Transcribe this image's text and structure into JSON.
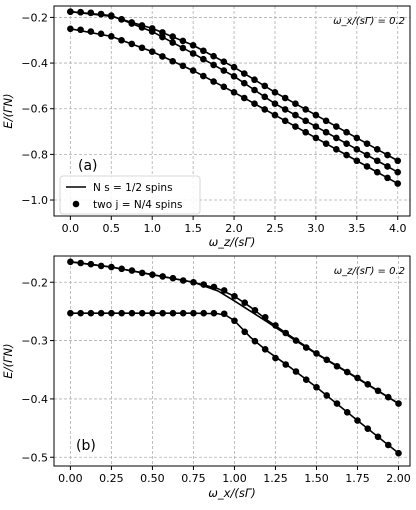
{
  "chart_data": [
    {
      "type": "line",
      "panel_label": "(a)",
      "annotation": "ω_x/(sΓ) = 0.2",
      "xlabel": "ω_z/(sΓ)",
      "ylabel": "E/(ΓN)",
      "xlim": [
        -0.2,
        4.15
      ],
      "ylim": [
        -1.07,
        -0.15
      ],
      "xticks": [
        0.0,
        0.5,
        1.0,
        1.5,
        2.0,
        2.5,
        3.0,
        3.5,
        4.0
      ],
      "xtick_labels": [
        "0.0",
        "0.5",
        "1.0",
        "1.5",
        "2.0",
        "2.5",
        "3.0",
        "3.5",
        "4.0"
      ],
      "yticks": [
        -1.0,
        -0.8,
        -0.6,
        -0.4,
        -0.2
      ],
      "ytick_labels": [
        "−1.0",
        "−0.8",
        "−0.6",
        "−0.4",
        "−0.2"
      ],
      "grid": true,
      "legend": {
        "placement": "lower-left",
        "entries": [
          {
            "marker": "line",
            "label": "N s = 1/2 spins"
          },
          {
            "marker": "dot",
            "label": "two j = N/4 spins"
          }
        ]
      },
      "series": [
        {
          "x": [
            0.0,
            0.5,
            1.0,
            1.5,
            2.0,
            2.5,
            3.0,
            3.5,
            4.0
          ],
          "values": [
            -0.175,
            -0.195,
            -0.248,
            -0.322,
            -0.418,
            -0.528,
            -0.628,
            -0.728,
            -0.828
          ]
        },
        {
          "x": [
            0.0,
            0.5,
            1.0,
            1.5,
            2.0,
            2.5,
            3.0,
            3.5,
            4.0
          ],
          "values": [
            -0.175,
            -0.192,
            -0.262,
            -0.358,
            -0.458,
            -0.578,
            -0.678,
            -0.778,
            -0.878
          ]
        },
        {
          "x": [
            0.0,
            0.5,
            1.0,
            1.5,
            2.0,
            2.5,
            3.0,
            3.5,
            4.0
          ],
          "values": [
            -0.25,
            -0.283,
            -0.35,
            -0.433,
            -0.528,
            -0.628,
            -0.728,
            -0.828,
            -0.928
          ]
        }
      ],
      "dots": [
        {
          "x": [
            0.0,
            0.125,
            0.25,
            0.375,
            0.5,
            0.625,
            0.75,
            0.875,
            1.0,
            1.125,
            1.25,
            1.375,
            1.5,
            1.625,
            1.75,
            1.875,
            2.0,
            2.125,
            2.25,
            2.375,
            2.5,
            2.625,
            2.75,
            2.875,
            3.0,
            3.125,
            3.25,
            3.375,
            3.5,
            3.625,
            3.75,
            3.875,
            4.0
          ],
          "values": [
            -0.175,
            -0.177,
            -0.18,
            -0.186,
            -0.195,
            -0.208,
            -0.222,
            -0.235,
            -0.248,
            -0.266,
            -0.284,
            -0.303,
            -0.322,
            -0.346,
            -0.37,
            -0.394,
            -0.418,
            -0.446,
            -0.473,
            -0.5,
            -0.528,
            -0.553,
            -0.578,
            -0.603,
            -0.628,
            -0.653,
            -0.678,
            -0.703,
            -0.728,
            -0.753,
            -0.778,
            -0.803,
            -0.828
          ]
        },
        {
          "x": [
            0.0,
            0.125,
            0.25,
            0.375,
            0.5,
            0.625,
            0.75,
            0.875,
            1.0,
            1.125,
            1.25,
            1.375,
            1.5,
            1.625,
            1.75,
            1.875,
            2.0,
            2.125,
            2.25,
            2.375,
            2.5,
            2.625,
            2.75,
            2.875,
            3.0,
            3.125,
            3.25,
            3.375,
            3.5,
            3.625,
            3.75,
            3.875,
            4.0
          ],
          "values": [
            -0.175,
            -0.177,
            -0.18,
            -0.185,
            -0.192,
            -0.209,
            -0.227,
            -0.244,
            -0.262,
            -0.286,
            -0.31,
            -0.334,
            -0.358,
            -0.383,
            -0.408,
            -0.433,
            -0.458,
            -0.488,
            -0.518,
            -0.548,
            -0.578,
            -0.603,
            -0.628,
            -0.653,
            -0.678,
            -0.703,
            -0.728,
            -0.753,
            -0.778,
            -0.803,
            -0.828,
            -0.853,
            -0.878
          ]
        },
        {
          "x": [
            0.0,
            0.125,
            0.25,
            0.375,
            0.5,
            0.625,
            0.75,
            0.875,
            1.0,
            1.125,
            1.25,
            1.375,
            1.5,
            1.625,
            1.75,
            1.875,
            2.0,
            2.125,
            2.25,
            2.375,
            2.5,
            2.625,
            2.75,
            2.875,
            3.0,
            3.125,
            3.25,
            3.375,
            3.5,
            3.625,
            3.75,
            3.875,
            4.0
          ],
          "values": [
            -0.25,
            -0.254,
            -0.262,
            -0.272,
            -0.283,
            -0.3,
            -0.316,
            -0.333,
            -0.35,
            -0.371,
            -0.392,
            -0.412,
            -0.433,
            -0.457,
            -0.481,
            -0.504,
            -0.528,
            -0.553,
            -0.578,
            -0.603,
            -0.628,
            -0.653,
            -0.678,
            -0.703,
            -0.728,
            -0.753,
            -0.778,
            -0.803,
            -0.828,
            -0.853,
            -0.878,
            -0.903,
            -0.928
          ]
        }
      ]
    },
    {
      "type": "line",
      "panel_label": "(b)",
      "annotation": "ω_z/(sΓ) = 0.2",
      "xlabel": "ω_x/(sΓ)",
      "ylabel": "E/(ΓN)",
      "xlim": [
        -0.1,
        2.07
      ],
      "ylim": [
        -0.515,
        -0.155
      ],
      "xticks": [
        0.0,
        0.25,
        0.5,
        0.75,
        1.0,
        1.25,
        1.5,
        1.75,
        2.0
      ],
      "xtick_labels": [
        "0.00",
        "0.25",
        "0.50",
        "0.75",
        "1.00",
        "1.25",
        "1.50",
        "1.75",
        "2.00"
      ],
      "yticks": [
        -0.5,
        -0.4,
        -0.3,
        -0.2
      ],
      "ytick_labels": [
        "−0.5",
        "−0.4",
        "−0.3",
        "−0.2"
      ],
      "grid": true,
      "series": [
        {
          "x": [
            0.0,
            0.25,
            0.5,
            0.75,
            0.9,
            1.0,
            1.1,
            1.2,
            1.35,
            1.5,
            1.75,
            2.0
          ],
          "values": [
            -0.165,
            -0.174,
            -0.187,
            -0.2,
            -0.215,
            -0.232,
            -0.25,
            -0.268,
            -0.296,
            -0.323,
            -0.365,
            -0.408
          ]
        },
        {
          "x": [
            0.0,
            0.25,
            0.5,
            0.75,
            0.9,
            1.0,
            1.1,
            1.2,
            1.35,
            1.5,
            1.75,
            2.0
          ],
          "values": [
            -0.165,
            -0.174,
            -0.187,
            -0.2,
            -0.211,
            -0.224,
            -0.243,
            -0.265,
            -0.294,
            -0.322,
            -0.364,
            -0.408
          ]
        },
        {
          "x": [
            0.0,
            0.25,
            0.5,
            0.75,
            0.9,
            0.95,
            1.0,
            1.1,
            1.2,
            1.35,
            1.5,
            1.75,
            2.0
          ],
          "values": [
            -0.253,
            -0.253,
            -0.253,
            -0.253,
            -0.254,
            -0.257,
            -0.266,
            -0.295,
            -0.318,
            -0.348,
            -0.38,
            -0.437,
            -0.493
          ]
        }
      ],
      "dots": [
        {
          "x": [
            0.0,
            0.0625,
            0.125,
            0.1875,
            0.25,
            0.3125,
            0.375,
            0.4375,
            0.5,
            0.5625,
            0.625,
            0.6875,
            0.75,
            0.8125,
            0.875,
            0.9375,
            1.0,
            1.0625,
            1.125,
            1.1875,
            1.25,
            1.3125,
            1.375,
            1.4375,
            1.5,
            1.5625,
            1.625,
            1.6875,
            1.75,
            1.8125,
            1.875,
            1.9375,
            2.0
          ],
          "values": [
            -0.165,
            -0.167,
            -0.169,
            -0.172,
            -0.174,
            -0.177,
            -0.18,
            -0.184,
            -0.187,
            -0.19,
            -0.193,
            -0.197,
            -0.2,
            -0.204,
            -0.208,
            -0.214,
            -0.224,
            -0.235,
            -0.248,
            -0.26,
            -0.274,
            -0.287,
            -0.3,
            -0.312,
            -0.322,
            -0.333,
            -0.344,
            -0.354,
            -0.364,
            -0.375,
            -0.386,
            -0.397,
            -0.408
          ]
        },
        {
          "x": [
            0.0,
            0.0625,
            0.125,
            0.1875,
            0.25,
            0.3125,
            0.375,
            0.4375,
            0.5,
            0.5625,
            0.625,
            0.6875,
            0.75,
            0.8125,
            0.875,
            0.9375,
            1.0,
            1.0625,
            1.125,
            1.1875,
            1.25,
            1.3125,
            1.375,
            1.4375,
            1.5,
            1.5625,
            1.625,
            1.6875,
            1.75,
            1.8125,
            1.875,
            1.9375,
            2.0
          ],
          "values": [
            -0.253,
            -0.253,
            -0.253,
            -0.253,
            -0.253,
            -0.253,
            -0.253,
            -0.253,
            -0.253,
            -0.253,
            -0.253,
            -0.253,
            -0.253,
            -0.253,
            -0.253,
            -0.254,
            -0.266,
            -0.285,
            -0.301,
            -0.315,
            -0.33,
            -0.341,
            -0.353,
            -0.367,
            -0.38,
            -0.394,
            -0.408,
            -0.423,
            -0.437,
            -0.451,
            -0.465,
            -0.479,
            -0.493
          ]
        }
      ]
    }
  ]
}
